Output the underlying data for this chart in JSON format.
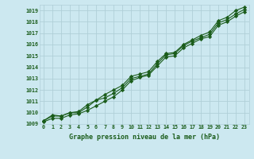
{
  "title": "Graphe pression niveau de la mer (hPa)",
  "bg_color": "#cce8f0",
  "grid_color": "#b0cfd8",
  "line_color": "#1a5c1a",
  "xlim": [
    -0.5,
    23.5
  ],
  "ylim": [
    1009.0,
    1019.5
  ],
  "yticks": [
    1009,
    1010,
    1011,
    1012,
    1013,
    1014,
    1015,
    1016,
    1017,
    1018,
    1019
  ],
  "xticks": [
    0,
    1,
    2,
    3,
    4,
    5,
    6,
    7,
    8,
    9,
    10,
    11,
    12,
    13,
    14,
    15,
    16,
    17,
    18,
    19,
    20,
    21,
    22,
    23
  ],
  "series1": [
    1009.3,
    1009.8,
    1009.7,
    1010.0,
    1010.1,
    1010.7,
    1011.1,
    1011.6,
    1012.0,
    1012.4,
    1013.2,
    1013.4,
    1013.6,
    1014.5,
    1015.2,
    1015.3,
    1016.0,
    1016.4,
    1016.8,
    1017.1,
    1018.1,
    1018.4,
    1019.0,
    1019.3
  ],
  "series2": [
    1009.3,
    1009.7,
    1009.7,
    1010.0,
    1010.0,
    1010.5,
    1011.1,
    1011.3,
    1011.7,
    1012.2,
    1013.0,
    1013.2,
    1013.4,
    1014.3,
    1015.1,
    1015.2,
    1015.9,
    1016.3,
    1016.6,
    1016.9,
    1017.9,
    1018.2,
    1018.7,
    1019.1
  ],
  "series3": [
    1009.2,
    1009.5,
    1009.5,
    1009.8,
    1009.9,
    1010.2,
    1010.6,
    1011.0,
    1011.4,
    1012.0,
    1012.8,
    1013.1,
    1013.3,
    1014.1,
    1014.9,
    1015.0,
    1015.7,
    1016.1,
    1016.5,
    1016.7,
    1017.7,
    1018.0,
    1018.5,
    1018.9
  ]
}
